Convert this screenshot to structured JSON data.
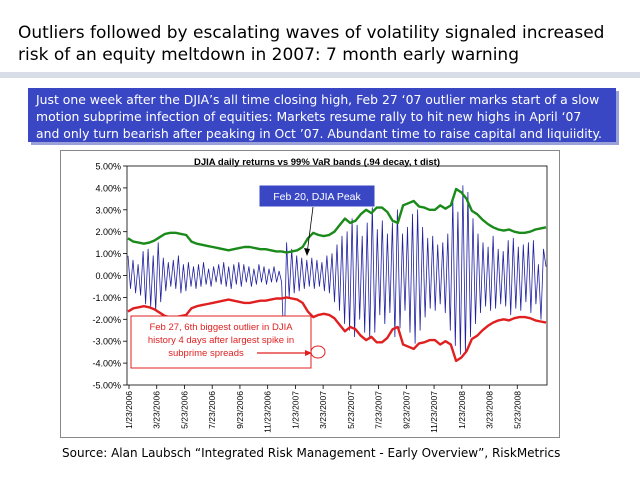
{
  "slide": {
    "title": "Outliers followed by escalating waves of volatility signaled increased risk of an equity meltdown in 2007: 7 month early warning",
    "banner": "Just one week after the DJIA’s all time closing high, Feb 27 ‘07 outlier marks start of  a slow motion subprime infection of equities: Markets resume rally to hit new highs in April ‘07 and only turn bearish after peaking in Oct ’07. Abundant time to raise capital and liquiidity.",
    "source": "Source: Alan Laubsch “Integrated Risk Management - Early Overview”, RiskMetrics"
  },
  "chart_data": {
    "type": "line",
    "title": "DJIA daily returns vs 99% VaR bands (.94 decay, t dist)",
    "x_tick_labels": [
      "1/23/2006",
      "3/23/2006",
      "5/23/2006",
      "7/23/2006",
      "9/23/2006",
      "11/23/2006",
      "1/23/2007",
      "3/23/2007",
      "5/23/2007",
      "7/23/2007",
      "9/23/2007",
      "11/23/2007",
      "1/23/2008",
      "3/23/2008",
      "5/23/2008"
    ],
    "y_tick_labels": [
      "5.00%",
      "4.00%",
      "3.00%",
      "2.00%",
      "1.00%",
      "0.00%",
      "-1.00%",
      "-2.00%",
      "-3.00%",
      "-4.00%",
      "-5.00%"
    ],
    "ylim": [
      -5,
      5
    ],
    "grid": false,
    "x_tick_count": 15,
    "series": [
      {
        "role": "var-upper",
        "color": "#1a8a1a",
        "values": [
          1.7,
          1.55,
          1.5,
          1.45,
          1.5,
          1.6,
          1.75,
          1.9,
          1.95,
          1.95,
          1.9,
          1.85,
          1.55,
          1.45,
          1.4,
          1.35,
          1.3,
          1.25,
          1.2,
          1.15,
          1.2,
          1.25,
          1.3,
          1.3,
          1.25,
          1.2,
          1.2,
          1.15,
          1.1,
          1.1,
          1.05,
          1.1,
          1.15,
          1.3,
          1.7,
          1.95,
          1.85,
          1.8,
          1.85,
          2.0,
          2.3,
          2.6,
          2.4,
          2.5,
          2.8,
          3.0,
          2.85,
          3.1,
          3.1,
          2.9,
          2.5,
          2.4,
          3.2,
          3.3,
          3.4,
          3.15,
          3.1,
          3.0,
          3.0,
          3.2,
          3.05,
          3.2,
          3.95,
          3.8,
          3.5,
          2.95,
          2.8,
          2.55,
          2.35,
          2.2,
          2.1,
          2.05,
          2.1,
          2.0,
          1.95,
          1.95,
          2.0,
          2.1,
          2.15,
          2.2
        ]
      },
      {
        "role": "var-lower",
        "color": "#e02020",
        "values": [
          -1.65,
          -1.5,
          -1.45,
          -1.4,
          -1.45,
          -1.55,
          -1.7,
          -1.85,
          -1.9,
          -1.9,
          -1.85,
          -1.8,
          -1.5,
          -1.4,
          -1.35,
          -1.3,
          -1.25,
          -1.2,
          -1.15,
          -1.1,
          -1.15,
          -1.2,
          -1.25,
          -1.25,
          -1.2,
          -1.15,
          -1.15,
          -1.1,
          -1.05,
          -1.05,
          -1.0,
          -1.05,
          -1.1,
          -1.25,
          -1.65,
          -1.9,
          -1.8,
          -1.75,
          -1.8,
          -1.95,
          -2.25,
          -2.55,
          -2.35,
          -2.45,
          -2.75,
          -2.95,
          -2.8,
          -3.05,
          -3.05,
          -2.85,
          -2.45,
          -2.35,
          -3.15,
          -3.25,
          -3.35,
          -3.1,
          -3.05,
          -2.95,
          -2.95,
          -3.15,
          -3.0,
          -3.15,
          -3.9,
          -3.75,
          -3.45,
          -2.9,
          -2.75,
          -2.5,
          -2.3,
          -2.15,
          -2.05,
          -2.0,
          -2.05,
          -1.95,
          -1.9,
          -1.9,
          -1.95,
          -2.05,
          -2.1,
          -2.15
        ]
      },
      {
        "role": "daily-returns",
        "color": "#2020a0",
        "values": [
          0.9,
          -0.6,
          0.7,
          -0.8,
          0.5,
          -0.9,
          1.1,
          -1.3,
          1.2,
          -1.4,
          0.9,
          -1.6,
          1.5,
          -1.2,
          0.8,
          -0.7,
          0.6,
          -0.5,
          0.7,
          -0.6,
          0.9,
          -0.8,
          0.5,
          -0.7,
          0.6,
          -0.5,
          0.4,
          -0.6,
          0.5,
          -0.5,
          0.6,
          -0.4,
          0.3,
          -0.5,
          0.4,
          -0.3,
          0.5,
          -0.4,
          0.6,
          -0.5,
          0.4,
          -0.6,
          0.5,
          -0.4,
          0.6,
          -0.5,
          0.5,
          -0.3,
          0.4,
          -0.5,
          0.3,
          -0.4,
          0.5,
          -0.3,
          0.4,
          -0.4,
          0.3,
          -0.3,
          0.4,
          -0.3,
          0.2,
          -0.3,
          -3.5,
          1.5,
          -1.0,
          1.2,
          -0.8,
          0.9,
          -0.7,
          0.8,
          -0.6,
          0.7,
          -0.5,
          0.8,
          -0.6,
          0.7,
          -0.5,
          0.6,
          -0.7,
          0.9,
          -0.8,
          1.0,
          -1.2,
          1.4,
          -1.6,
          1.8,
          -2.2,
          2.0,
          -2.5,
          2.6,
          -2.8,
          2.3,
          -2.0,
          1.8,
          -2.6,
          2.4,
          -2.9,
          3.2,
          -2.6,
          2.1,
          -1.8,
          2.5,
          -2.2,
          1.9,
          -1.7,
          2.4,
          -2.8,
          3.0,
          -2.4,
          1.9,
          -1.6,
          2.2,
          -2.6,
          2.8,
          -3.1,
          3.0,
          -2.5,
          2.2,
          -1.9,
          1.7,
          -1.5,
          1.8,
          -1.6,
          1.4,
          -1.3,
          1.5,
          -1.7,
          1.9,
          -2.5,
          3.5,
          -3.2,
          2.9,
          -3.6,
          4.1,
          -3.5,
          3.8,
          -2.8,
          2.6,
          -2.2,
          1.9,
          -1.7,
          1.5,
          -1.4,
          1.3,
          -1.6,
          1.8,
          -1.5,
          1.2,
          -1.3,
          1.1,
          -1.4,
          1.6,
          -1.8,
          1.7,
          -1.5,
          1.3,
          -1.6,
          1.4,
          -1.2,
          1.5,
          -1.7,
          1.6,
          -1.3,
          0.5,
          -2.0,
          1.2,
          0.4
        ]
      }
    ],
    "annotations": [
      {
        "name": "feb20-callout",
        "text": "Feb 20, DJIA Peak",
        "fill": "#3a47c4",
        "color": "#ffffff"
      },
      {
        "name": "feb27-callout",
        "text": [
          "Feb 27, 6th biggest outlier in DJIA",
          "history 4 days after largest spike in",
          "subprime spreads"
        ],
        "color": "#e02020"
      }
    ]
  }
}
